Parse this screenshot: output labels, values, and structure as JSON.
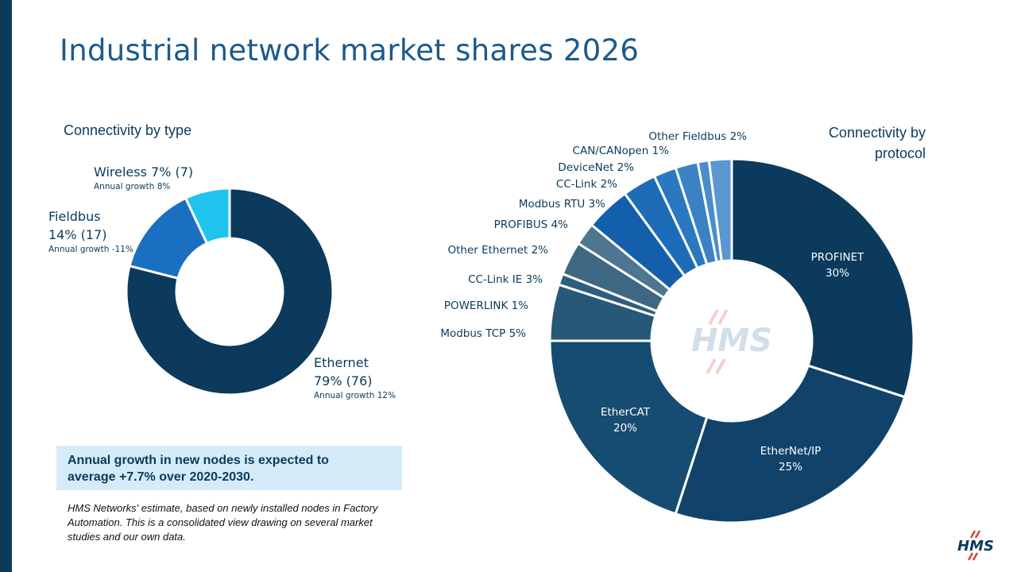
{
  "title": "Industrial network market shares 2026",
  "left_subtitle": "Connectivity by type",
  "right_subtitle_line1": "Connectivity by",
  "right_subtitle_line2": "protocol",
  "callout_line1": "Annual growth in new nodes is expected to",
  "callout_line2": "average +7.7% over 2020-2030.",
  "note": "HMS Networks' estimate, based on newly installed nodes in Factory Automation. This is a consolidated view drawing on several market studies and our own data.",
  "logo_text": "HMS",
  "colors": {
    "primary": "#0b3a5c",
    "title": "#1c5a8a",
    "callout_bg": "#d6ebf8"
  },
  "chart_data": [
    {
      "type": "donut",
      "title": "Connectivity by type",
      "slices": [
        {
          "name": "Ethernet",
          "value": 79,
          "prev": "(76)",
          "display": "79% (76)",
          "growth": "Annual growth 12%",
          "color": "#0b3a5c"
        },
        {
          "name": "Fieldbus",
          "value": 14,
          "prev": "(17)",
          "display": "14% (17)",
          "growth": "Annual growth -11%",
          "color": "#1a6fc0"
        },
        {
          "name": "Wireless",
          "value": 7,
          "prev": "(7)",
          "display": "Wireless 7% (7)",
          "growth": "Annual growth 8%",
          "color": "#1fc4ee"
        }
      ]
    },
    {
      "type": "donut",
      "title": "Connectivity by protocol",
      "slices": [
        {
          "name": "PROFINET",
          "value": 30,
          "display": "30%",
          "color": "#0b3a5c"
        },
        {
          "name": "EtherNet/IP",
          "value": 25,
          "display": "25%",
          "color": "#11436a"
        },
        {
          "name": "EtherCAT",
          "value": 20,
          "display": "20%",
          "color": "#174c72"
        },
        {
          "name": "Modbus TCP",
          "value": 5,
          "display": "Modbus TCP 5%",
          "color": "#27587a"
        },
        {
          "name": "POWERLINK",
          "value": 1,
          "display": "POWERLINK 1%",
          "color": "#2f5d7c"
        },
        {
          "name": "CC-Link IE",
          "value": 3,
          "display": "CC-Link IE 3%",
          "color": "#3d6783"
        },
        {
          "name": "Other Ethernet",
          "value": 2,
          "display": "Other Ethernet 2%",
          "color": "#4e7690"
        },
        {
          "name": "PROFIBUS",
          "value": 4,
          "display": "PROFIBUS 4%",
          "color": "#135fac"
        },
        {
          "name": "Modbus RTU",
          "value": 3,
          "display": "Modbus RTU 3%",
          "color": "#1d6cb7"
        },
        {
          "name": "CC-Link",
          "value": 2,
          "display": "CC-Link 2%",
          "color": "#2a78c0"
        },
        {
          "name": "DeviceNet",
          "value": 2,
          "display": "DeviceNet 2%",
          "color": "#3b82c5"
        },
        {
          "name": "CAN/CANopen",
          "value": 1,
          "display": "CAN/CANopen 1%",
          "color": "#4a8dcc"
        },
        {
          "name": "Other Fieldbus",
          "value": 2,
          "display": "Other Fieldbus 2%",
          "color": "#5b97d1"
        }
      ]
    }
  ]
}
